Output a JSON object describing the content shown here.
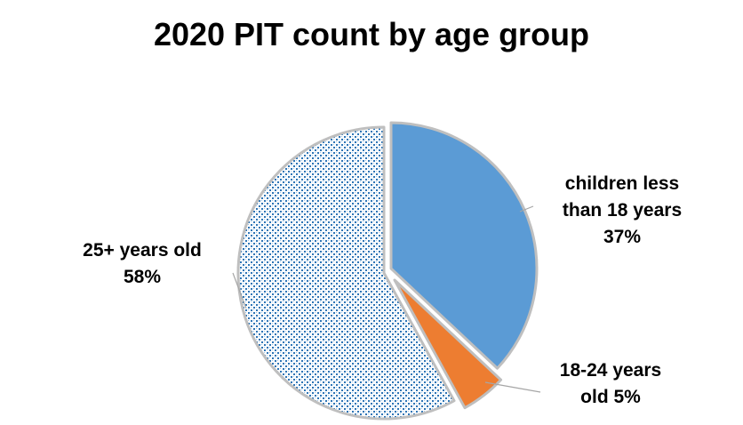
{
  "chart_data": {
    "type": "pie",
    "title": "2020 PIT count by age group",
    "slices": [
      {
        "category": "children less than 18 years",
        "value": 37,
        "label": "children less than 18 years 37%",
        "color": "#5B9BD5",
        "pattern": "solid"
      },
      {
        "category": "18-24 years old",
        "value": 5,
        "label": "18-24 years old 5%",
        "color": "#ED7D31",
        "pattern": "solid"
      },
      {
        "category": "25+ years old",
        "value": 58,
        "label": "25+ years old 58%",
        "color": "#2E75B6",
        "pattern": "dotted"
      }
    ],
    "label_lines": [
      {
        "line1": "children less",
        "line2": "than 18 years",
        "line3": "37%"
      },
      {
        "line1": "18-24 years",
        "line2": "old 5%"
      },
      {
        "line1": "25+ years old",
        "line2": "58%"
      }
    ],
    "exploded": true,
    "legend": "none",
    "border_color": "#BFBFBF"
  }
}
